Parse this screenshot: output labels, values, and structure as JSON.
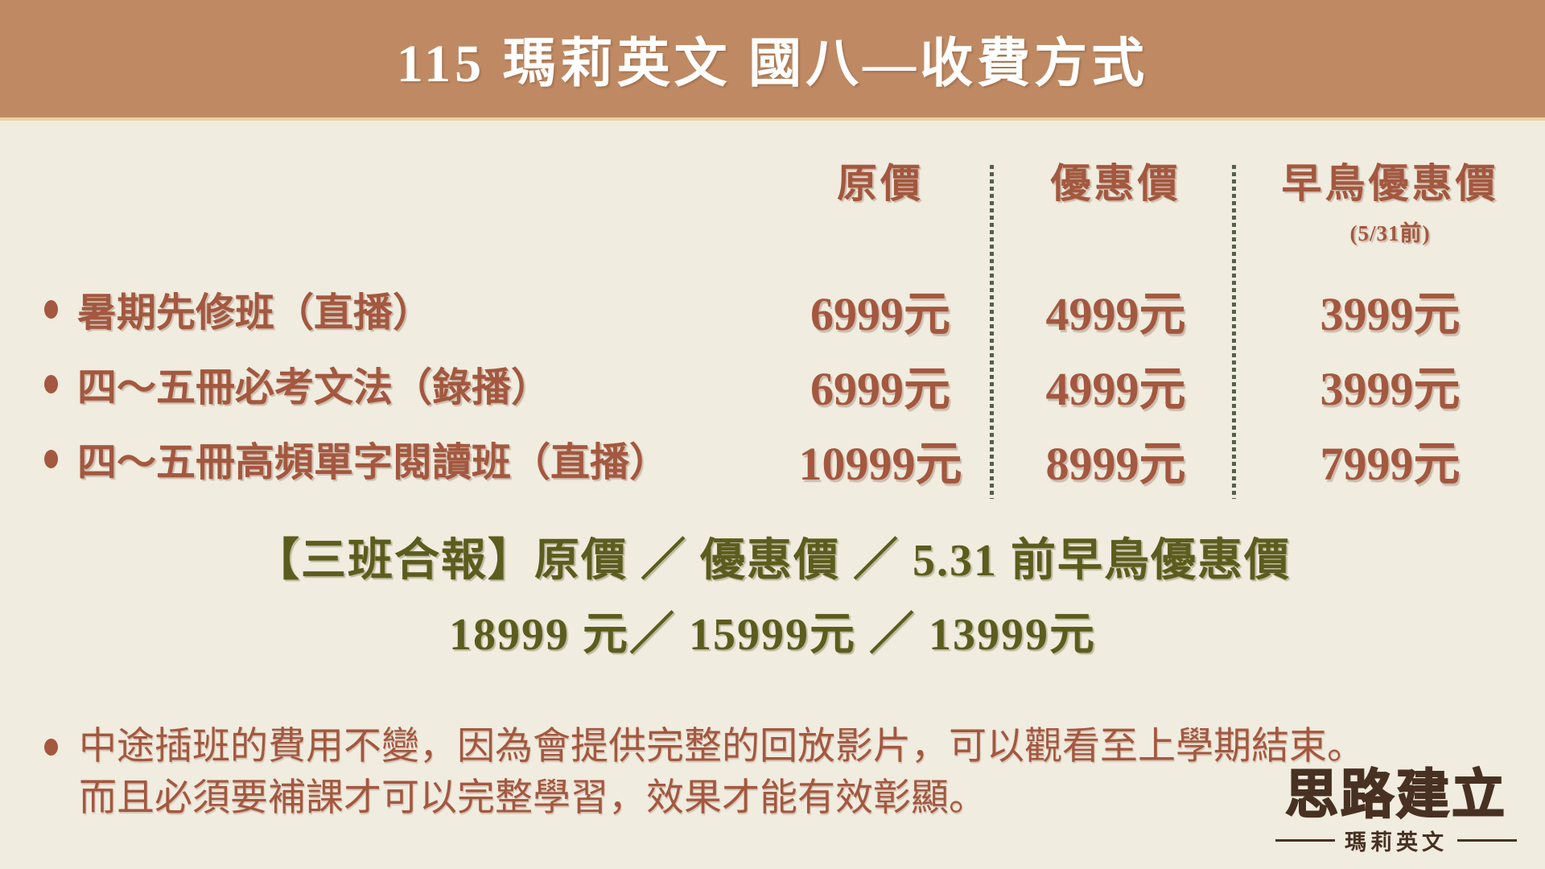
{
  "header": {
    "title": "115 瑪莉英文 國八—收費方式"
  },
  "pricing_table": {
    "columns": [
      {
        "label": "原價",
        "note": ""
      },
      {
        "label": "優惠價",
        "note": ""
      },
      {
        "label": "早鳥優惠價",
        "note": "(5/31前)"
      }
    ],
    "rows": [
      {
        "label": "暑期先修班（直播）",
        "original": "6999元",
        "discount": "4999元",
        "early_bird": "3999元"
      },
      {
        "label": "四～五冊必考文法（錄播）",
        "original": "6999元",
        "discount": "4999元",
        "early_bird": "3999元"
      },
      {
        "label": "四～五冊高頻單字閱讀班（直播）",
        "original": "10999元",
        "discount": "8999元",
        "early_bird": "7999元"
      }
    ]
  },
  "bundle": {
    "line1": "【三班合報】原價 ／ 優惠價 ／ 5.31 前早鳥優惠價",
    "line2": "18999 元／ 15999元 ／ 13999元"
  },
  "note": {
    "line1": "中途插班的費用不變，因為會提供完整的回放影片，可以觀看至上學期結束。",
    "line2": "而且必須要補課才可以完整學習，效果才能有效彰顯。"
  },
  "logo": {
    "main": "思路建立",
    "sub": "瑪莉英文"
  },
  "colors": {
    "banner": "#bf8a63",
    "banner_edge": "#ecd2a6",
    "background": "#f0ecdf",
    "text_red": "#a3583f",
    "olive": "#5c5c1e",
    "divider_green": "#55604a",
    "logo_brown": "#483122"
  }
}
